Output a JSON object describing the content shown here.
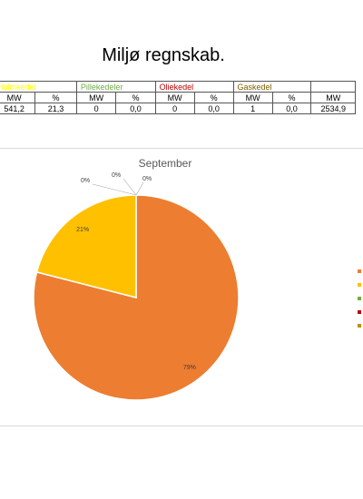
{
  "report": {
    "title": "Miljø regnskab."
  },
  "table": {
    "groups": [
      {
        "label": "Halmkedel",
        "color": "#ffff00"
      },
      {
        "label": "Pillekedeler",
        "color": "#70ad47"
      },
      {
        "label": "Oliekedel",
        "color": "#c00000"
      },
      {
        "label": "Gaskedel",
        "color": "#7f6000"
      },
      {
        "label": "",
        "color": "#000000"
      }
    ],
    "units": [
      "MW",
      "%",
      "MW",
      "%",
      "MW",
      "%",
      "MW",
      "%",
      "MW"
    ],
    "values": [
      "541,2",
      "21,3",
      "0",
      "0,0",
      "0",
      "0,0",
      "1",
      "0,0",
      "2534,9"
    ]
  },
  "chart_data": {
    "type": "pie",
    "title": "September",
    "slices": [
      {
        "value": 79,
        "label": "79%",
        "color": "#ed7d31"
      },
      {
        "value": 21,
        "label": "21%",
        "color": "#ffc000"
      },
      {
        "value": 0,
        "label": "0%",
        "color": "#70ad47"
      },
      {
        "value": 0,
        "label": "0%",
        "color": "#c00000"
      },
      {
        "value": 0,
        "label": "0%",
        "color": "#bf8f00"
      }
    ],
    "legend_position": "right"
  }
}
